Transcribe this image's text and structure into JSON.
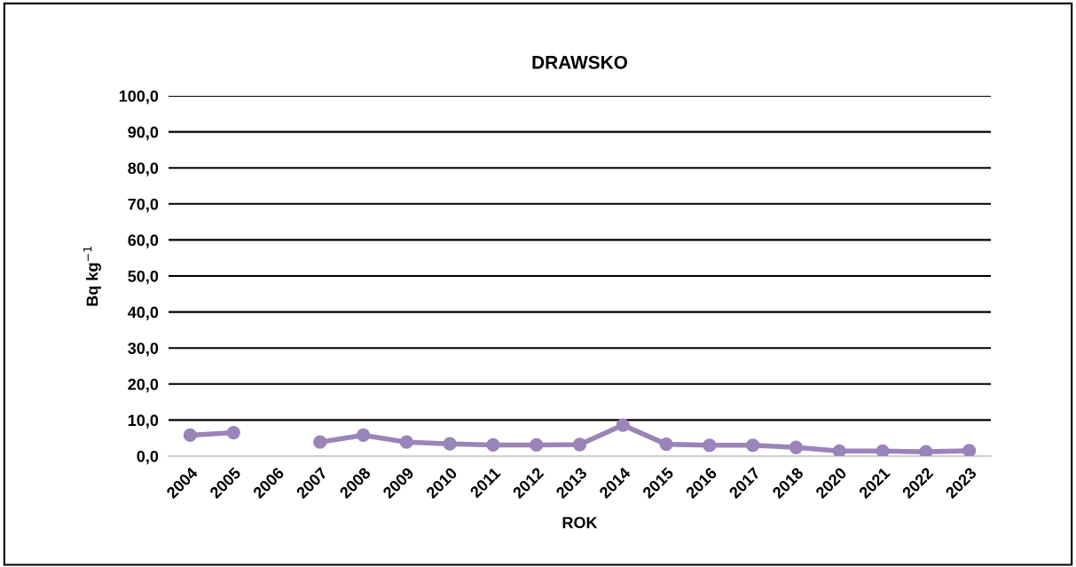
{
  "chart_data": {
    "type": "line",
    "title": "DRAWSKO",
    "xlabel": "ROK",
    "ylabel": "Bq kg$^{−1}$",
    "categories": [
      "2004",
      "2005",
      "2006",
      "2007",
      "2008",
      "2009",
      "2010",
      "2011",
      "2012",
      "2013",
      "2014",
      "2015",
      "2016",
      "2017",
      "2018",
      "2020",
      "2021",
      "2022",
      "2023"
    ],
    "series": [
      {
        "color": "#9b84b9",
        "values": [
          5.8,
          6.5,
          null,
          3.9,
          5.8,
          3.9,
          3.4,
          3.1,
          3.1,
          3.2,
          8.6,
          3.3,
          3.0,
          3.0,
          2.4,
          1.4,
          1.4,
          1.2,
          1.5
        ]
      }
    ],
    "ylim": [
      0,
      100
    ],
    "yticks": [
      {
        "value": 0,
        "label": "0,0"
      },
      {
        "value": 10,
        "label": "10,0"
      },
      {
        "value": 20,
        "label": "20,0"
      },
      {
        "value": 30,
        "label": "30,0"
      },
      {
        "value": 40,
        "label": "40,0"
      },
      {
        "value": 50,
        "label": "50,0"
      },
      {
        "value": 60,
        "label": "60,0"
      },
      {
        "value": 70,
        "label": "70,0"
      },
      {
        "value": 80,
        "label": "80,0"
      },
      {
        "value": 90,
        "label": "90,0"
      },
      {
        "value": 100,
        "label": "100,0"
      }
    ],
    "grid": "y",
    "marker": "circle",
    "line_style": "solid",
    "legend": false
  }
}
